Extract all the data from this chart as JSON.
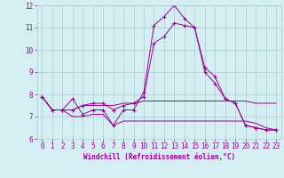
{
  "x": [
    0,
    1,
    2,
    3,
    4,
    5,
    6,
    7,
    8,
    9,
    10,
    11,
    12,
    13,
    14,
    15,
    16,
    17,
    18,
    19,
    20,
    21,
    22,
    23
  ],
  "line1": [
    7.9,
    7.3,
    7.3,
    7.8,
    7.1,
    7.3,
    7.3,
    6.6,
    7.3,
    7.3,
    8.1,
    11.1,
    11.5,
    12.0,
    11.4,
    11.0,
    9.2,
    8.8,
    7.8,
    7.6,
    6.6,
    6.5,
    6.4,
    6.4
  ],
  "line2": [
    7.9,
    7.3,
    7.3,
    7.3,
    7.5,
    7.5,
    7.5,
    7.5,
    7.6,
    7.6,
    7.7,
    7.7,
    7.7,
    7.7,
    7.7,
    7.7,
    7.7,
    7.7,
    7.7,
    7.7,
    7.7,
    7.6,
    7.6,
    7.6
  ],
  "line3": [
    7.9,
    7.3,
    7.3,
    7.0,
    7.0,
    7.1,
    7.1,
    6.6,
    6.8,
    6.8,
    6.8,
    6.8,
    6.8,
    6.8,
    6.8,
    6.8,
    6.8,
    6.8,
    6.8,
    6.8,
    6.8,
    6.7,
    6.5,
    6.4
  ],
  "line4": [
    7.9,
    7.3,
    7.3,
    7.3,
    7.5,
    7.6,
    7.6,
    7.3,
    7.5,
    7.6,
    7.9,
    10.3,
    10.6,
    11.2,
    11.1,
    11.0,
    9.0,
    8.5,
    7.8,
    7.6,
    6.6,
    6.5,
    6.4,
    6.4
  ],
  "line_color": "#990099",
  "bg_color": "#d4eef4",
  "grid_color": "#aacccc",
  "xlabel": "Windchill (Refroidissement éolien,°C)",
  "ylim": [
    6,
    12
  ],
  "xlim": [
    -0.5,
    23.5
  ],
  "yticks": [
    6,
    7,
    8,
    9,
    10,
    11,
    12
  ],
  "xticks": [
    0,
    1,
    2,
    3,
    4,
    5,
    6,
    7,
    8,
    9,
    10,
    11,
    12,
    13,
    14,
    15,
    16,
    17,
    18,
    19,
    20,
    21,
    22,
    23
  ],
  "tick_fontsize": 5.5,
  "xlabel_fontsize": 5.5
}
